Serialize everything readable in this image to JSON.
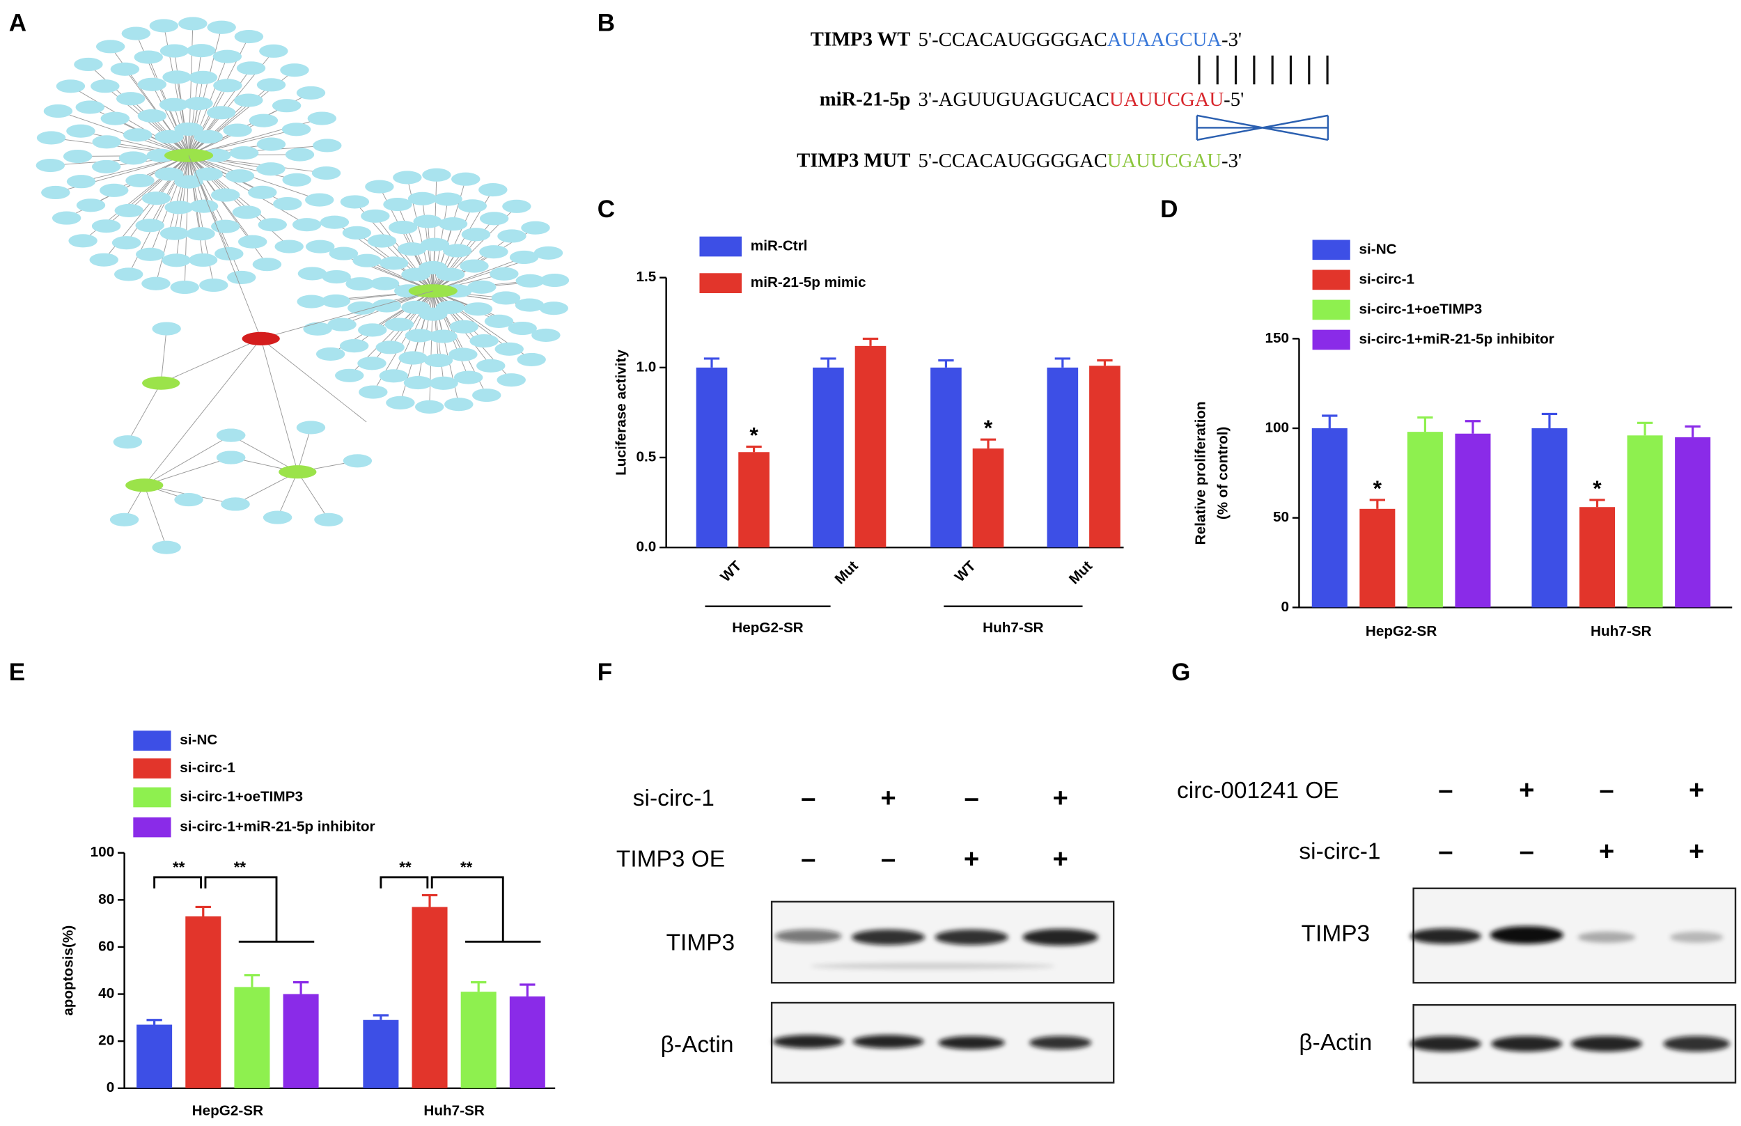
{
  "panel_labels": [
    "A",
    "B",
    "C",
    "D",
    "E",
    "F",
    "G"
  ],
  "sequences": [
    {
      "name": "TIMP3 WT",
      "prefix": "5'-CCACAUGGGGAC",
      "site": "AUAAGCUA",
      "suffix": "-3'",
      "color": "#3a78d8"
    },
    {
      "name": "miR-21-5p",
      "prefix": "3'-AGUUGUAGUCAC",
      "site": "UAUUCGAU",
      "suffix": "-5'",
      "color": "#d8262c"
    },
    {
      "name": "TIMP3 MUT",
      "prefix": "5'-CCACAUGGGGAC",
      "site": "UAUUCGAU",
      "suffix": "-3'",
      "color": "#8cc63e"
    }
  ],
  "chart_data": [
    {
      "type": "bar",
      "y_label": [
        "Luciferase activity"
      ],
      "categories": [
        "WT",
        "Mut",
        "WT",
        "Mut"
      ],
      "groups": [
        "HepG2-SR",
        "Huh7-SR"
      ],
      "series": [
        {
          "name": "miR-Ctrl",
          "color": "#3d4fe6",
          "values": [
            1.0,
            1.0,
            1.0,
            1.0
          ],
          "errors": [
            0.05,
            0.05,
            0.04,
            0.05
          ]
        },
        {
          "name": "miR-21-5p mimic",
          "color": "#e2352b",
          "values": [
            0.53,
            1.12,
            0.55,
            1.01
          ],
          "errors": [
            0.03,
            0.04,
            0.05,
            0.03
          ]
        }
      ],
      "annotations": [
        "*",
        "*"
      ],
      "ylim": [
        0,
        1.5
      ],
      "yticks": [
        {
          "value": 0,
          "label": "0.0"
        },
        0.5,
        {
          "value": 1,
          "label": "1.0"
        },
        1.5
      ]
    },
    {
      "type": "bar",
      "y_label": [
        "Relative proliferation",
        "(% of control)"
      ],
      "categories": [
        "HepG2-SR",
        "Huh7-SR"
      ],
      "series": [
        {
          "name": "si-NC",
          "color": "#3d4fe6",
          "values": [
            100,
            100
          ],
          "errors": [
            7,
            8
          ]
        },
        {
          "name": "si-circ-1",
          "color": "#e2352b",
          "values": [
            55,
            56
          ],
          "errors": [
            5,
            4
          ]
        },
        {
          "name": "si-circ-1+oeTIMP3",
          "color": "#8ef04f",
          "values": [
            98,
            96
          ],
          "errors": [
            8,
            7
          ]
        },
        {
          "name": "si-circ-1+miR-21-5p inhibitor",
          "color": "#8a2be8",
          "values": [
            97,
            95
          ],
          "errors": [
            7,
            6
          ]
        }
      ],
      "annotations": [
        "*",
        "*"
      ],
      "ylim": [
        0,
        150
      ],
      "yticks": [
        0,
        50,
        100,
        150
      ]
    },
    {
      "type": "bar",
      "y_label": [
        "apoptosis(%)"
      ],
      "categories": [
        "HepG2-SR",
        "Huh7-SR"
      ],
      "series": [
        {
          "name": "si-NC",
          "color": "#3d4fe6",
          "values": [
            27,
            29
          ],
          "errors": [
            2,
            2
          ]
        },
        {
          "name": "si-circ-1",
          "color": "#e2352b",
          "values": [
            73,
            77
          ],
          "errors": [
            4,
            5
          ]
        },
        {
          "name": "si-circ-1+oeTIMP3",
          "color": "#8ef04f",
          "values": [
            43,
            41
          ],
          "errors": [
            5,
            4
          ]
        },
        {
          "name": "si-circ-1+miR-21-5p inhibitor",
          "color": "#8a2be8",
          "values": [
            40,
            39
          ],
          "errors": [
            5,
            5
          ]
        }
      ],
      "annotations": [
        "**",
        "**",
        "**",
        "**"
      ],
      "ylim": [
        0,
        100
      ],
      "yticks": [
        0,
        20,
        40,
        60,
        80,
        100
      ]
    }
  ],
  "blots": [
    {
      "conditions": [
        {
          "label": "si-circ-1",
          "signs": [
            "–",
            "+",
            "–",
            "+"
          ]
        },
        {
          "label": "TIMP3 OE",
          "signs": [
            "–",
            "–",
            "+",
            "+"
          ]
        }
      ],
      "bands": [
        "TIMP3",
        "β-Actin"
      ]
    },
    {
      "conditions": [
        {
          "label": "circ-001241 OE",
          "signs": [
            "–",
            "+",
            "–",
            "+"
          ]
        },
        {
          "label": "si-circ-1",
          "signs": [
            "–",
            "–",
            "+",
            "+"
          ]
        }
      ],
      "bands": [
        "TIMP3",
        "β-Actin"
      ]
    }
  ]
}
